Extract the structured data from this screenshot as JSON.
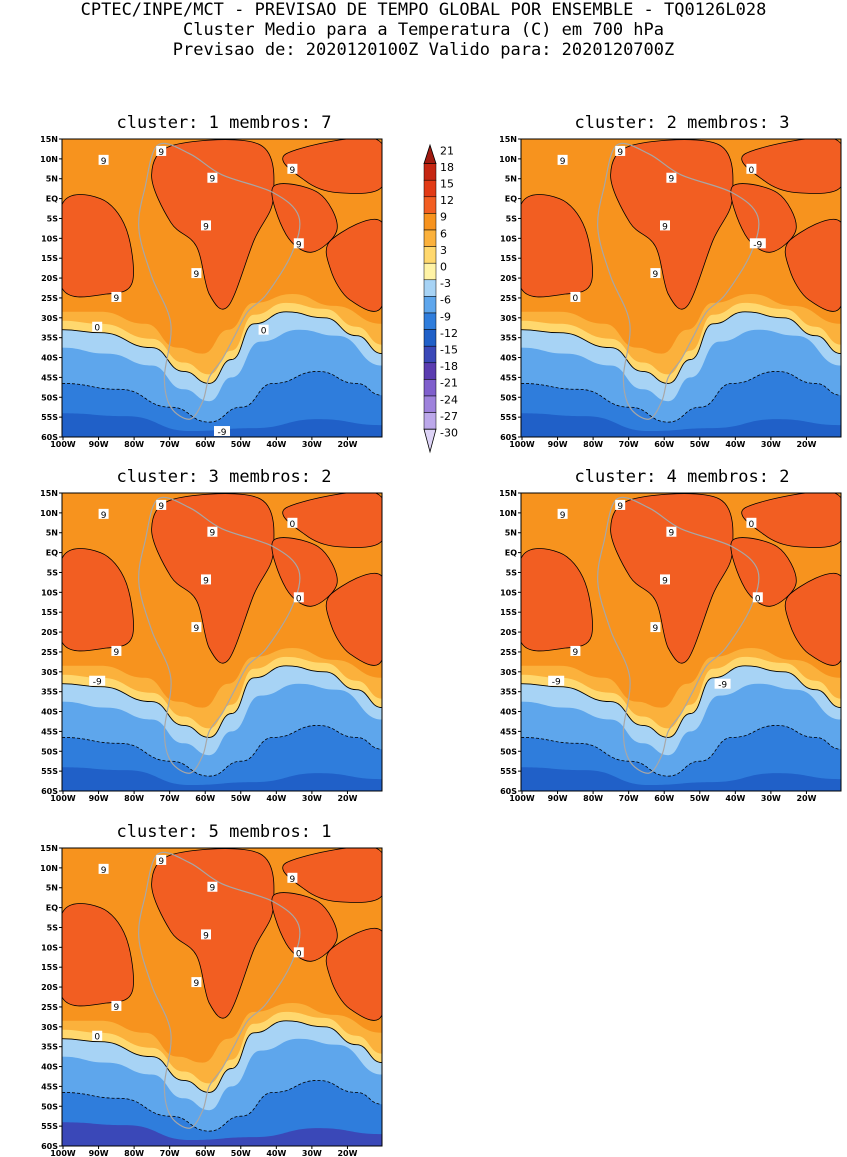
{
  "header": {
    "line1": "CPTEC/INPE/MCT - PREVISAO DE TEMPO GLOBAL POR ENSEMBLE - TQ0126L028",
    "line2": "Cluster Medio para a Temperatura (C) em 700 hPa",
    "line3": "Previsao de: 2020120100Z   Valido para: 2020120700Z"
  },
  "lat_labels": [
    "15N",
    "10N",
    "5N",
    "EQ",
    "5S",
    "10S",
    "15S",
    "20S",
    "25S",
    "30S",
    "35S",
    "40S",
    "45S",
    "50S",
    "55S",
    "60S"
  ],
  "lon_labels": [
    "100W",
    "90W",
    "80W",
    "70W",
    "60W",
    "50W",
    "40W",
    "30W",
    "20W"
  ],
  "colorbar": {
    "labels": [
      "21",
      "18",
      "15",
      "12",
      "9",
      "6",
      "3",
      "0",
      "-3",
      "-6",
      "-9",
      "-12",
      "-15",
      "-18",
      "-21",
      "-24",
      "-27",
      "-30"
    ],
    "colors": [
      "#a01a10",
      "#c52612",
      "#e23a16",
      "#f25e22",
      "#f7931e",
      "#fbb13c",
      "#ffd86e",
      "#fff3a6",
      "#a7d3f5",
      "#5ea6ec",
      "#2f7ddc",
      "#2060c8",
      "#3a48b8",
      "#5a3cb0",
      "#7f5fcc",
      "#9e82dc",
      "#bca8ea",
      "#ddd3f6"
    ]
  },
  "panels": [
    {
      "title": "cluster: 1   membros: 7",
      "contour_labels": [
        "9",
        "9",
        "9",
        "9",
        "9",
        "9",
        "9",
        "9",
        "0",
        "0",
        "-9"
      ]
    },
    {
      "title": "cluster: 2   membros: 3",
      "contour_labels": [
        "9",
        "9",
        "9",
        "9",
        "9",
        "0",
        "0",
        "-9"
      ]
    },
    {
      "title": "cluster: 3   membros: 2",
      "contour_labels": [
        "9",
        "9",
        "9",
        "9",
        "9",
        "9",
        "0",
        "0",
        "-9"
      ]
    },
    {
      "title": "cluster: 4   membros: 2",
      "contour_labels": [
        "9",
        "9",
        "9",
        "9",
        "9",
        "9",
        "0",
        "0",
        "-9",
        "-9"
      ]
    },
    {
      "title": "cluster: 5   membros: 1",
      "contour_labels": [
        "9",
        "9",
        "9",
        "9",
        "9",
        "9",
        "9",
        "0",
        "0"
      ]
    }
  ]
}
